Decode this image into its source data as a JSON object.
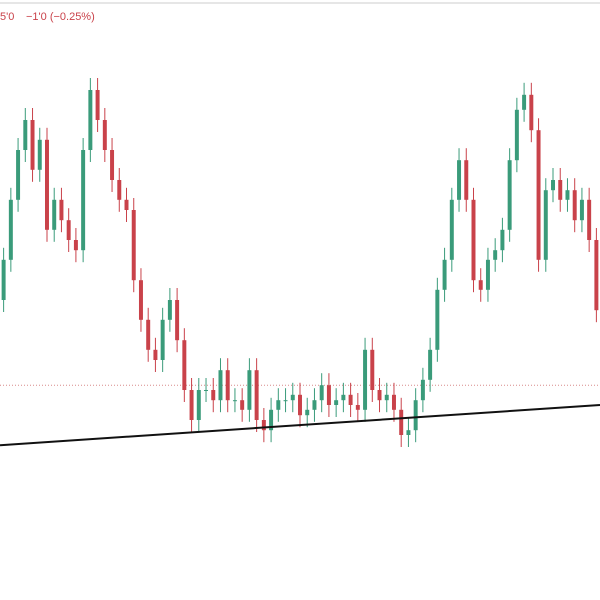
{
  "chart_data": {
    "type": "candlestick",
    "header": [
      "5'0",
      "−1'0 (−0.25%)"
    ],
    "up_color": "#3a9b7a",
    "down_color": "#c9424a",
    "ylim": [
      0,
      100
    ],
    "price_line": 35.8,
    "trendline": {
      "start": 25.8,
      "end": 32.5
    },
    "open": [
      50,
      56.7,
      66.7,
      75,
      80,
      71.7,
      76.7,
      61.7,
      66.7,
      63.3,
      60,
      58.3,
      75,
      85,
      80,
      75,
      70,
      66.7,
      65,
      53.3,
      46.7,
      41.7,
      40,
      46.7,
      50,
      43.3,
      35,
      30,
      35,
      35,
      33.3,
      38.3,
      33.3,
      33.3,
      31.7,
      38.3,
      30,
      28.3,
      31.7,
      33.3,
      33.3,
      34.2,
      30.8,
      31.7,
      33.3,
      35.8,
      32.5,
      33.3,
      34.2,
      32.5,
      31.7,
      41.7,
      35,
      33.3,
      34.2,
      31.7,
      27.5,
      28.3,
      33.3,
      36.7,
      41.7,
      51.7,
      56.7,
      66.7,
      73.3,
      66.7,
      53.3,
      51.7,
      56.7,
      58.3,
      61.7,
      73.3,
      81.7,
      84.2,
      78.3,
      56.7,
      68.3,
      70,
      66.7,
      68.3,
      63.3,
      66.7,
      60
    ],
    "high": [
      58.7,
      68.7,
      77,
      82,
      82,
      78.7,
      78.7,
      68.7,
      68.7,
      65.3,
      62,
      77,
      87,
      87,
      82,
      77,
      72,
      68.7,
      67,
      55.3,
      48.7,
      43.7,
      48.7,
      52,
      52,
      45.3,
      37,
      37,
      37,
      37,
      40.3,
      40.3,
      35.3,
      35.3,
      40.3,
      40.3,
      32,
      33.7,
      35.3,
      35.3,
      36.2,
      36.2,
      33.7,
      35.3,
      37.8,
      37.8,
      35.3,
      36.2,
      36.2,
      34.5,
      43.7,
      43.7,
      37,
      36.2,
      36.2,
      33.7,
      30.3,
      35.3,
      38.7,
      43.7,
      53.7,
      58.7,
      68.7,
      75.3,
      75.3,
      68.7,
      55.3,
      58.7,
      60.3,
      63.7,
      75.3,
      83.7,
      86.2,
      86.2,
      80.3,
      70.3,
      72,
      72,
      70.3,
      70.3,
      68.7,
      68.7,
      62
    ],
    "low": [
      48,
      54.7,
      64.7,
      73,
      69.7,
      69.7,
      59.7,
      59.7,
      61.3,
      58,
      56.3,
      56.3,
      73,
      78,
      73,
      68,
      64.7,
      63,
      51.3,
      44.7,
      39.7,
      38,
      38,
      44.7,
      41.3,
      33,
      28,
      28,
      33,
      31.3,
      31.3,
      31.3,
      31.3,
      29.7,
      29.7,
      28,
      26.3,
      26.3,
      29.7,
      31.3,
      31.3,
      28.8,
      28.8,
      29.7,
      31.3,
      30.5,
      30.5,
      31.3,
      30.5,
      29.7,
      29.7,
      33,
      31.3,
      31.3,
      29.7,
      25.5,
      25.5,
      26.3,
      31.3,
      34.7,
      39.7,
      49.7,
      54.7,
      64.7,
      64.7,
      51.3,
      49.7,
      49.7,
      54.7,
      56.3,
      59.7,
      71.3,
      79.7,
      76.3,
      54.7,
      54.7,
      66.3,
      64.7,
      64.7,
      61.3,
      61.3,
      58,
      46.3
    ],
    "close": [
      56.7,
      66.7,
      75,
      80,
      71.7,
      76.7,
      61.7,
      66.7,
      63.3,
      60,
      58.3,
      75,
      85,
      80,
      75,
      70,
      66.7,
      65,
      53.3,
      46.7,
      41.7,
      40,
      46.7,
      50,
      43.3,
      35,
      30,
      35,
      35,
      33.3,
      38.3,
      33.3,
      33.3,
      31.7,
      38.3,
      30,
      28.3,
      31.7,
      33.3,
      33.3,
      34.2,
      30.8,
      31.7,
      33.3,
      35.8,
      32.5,
      33.3,
      34.2,
      32.5,
      31.7,
      41.7,
      35,
      33.3,
      34.2,
      31.7,
      27.5,
      28.3,
      33.3,
      36.7,
      41.7,
      51.7,
      56.7,
      66.7,
      73.3,
      66.7,
      53.3,
      51.7,
      56.7,
      58.3,
      61.7,
      73.3,
      81.7,
      84.2,
      78.3,
      56.7,
      68.3,
      70,
      66.7,
      68.3,
      63.3,
      66.7,
      60,
      48.3
    ]
  }
}
